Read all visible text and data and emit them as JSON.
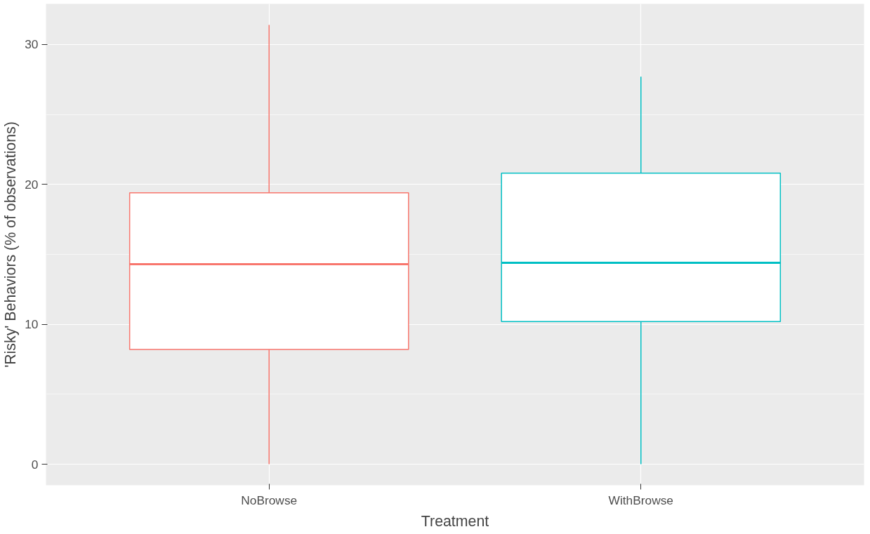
{
  "chart_data": {
    "type": "box",
    "xlabel": "Treatment",
    "ylabel": "'Risky' Behaviors (% of observations)",
    "categories": [
      "NoBrowse",
      "WithBrowse"
    ],
    "boxes": [
      {
        "low": 0,
        "q1": 8.2,
        "median": 14.3,
        "q3": 19.4,
        "high": 31.4
      },
      {
        "low": 0,
        "q1": 10.2,
        "median": 14.4,
        "q3": 20.8,
        "high": 27.7
      }
    ],
    "colors": [
      "#f8766d",
      "#00bfc4"
    ],
    "ylim": [
      -1.5,
      32.9
    ],
    "yticks": [
      0,
      10,
      20,
      30
    ],
    "grid": true
  }
}
